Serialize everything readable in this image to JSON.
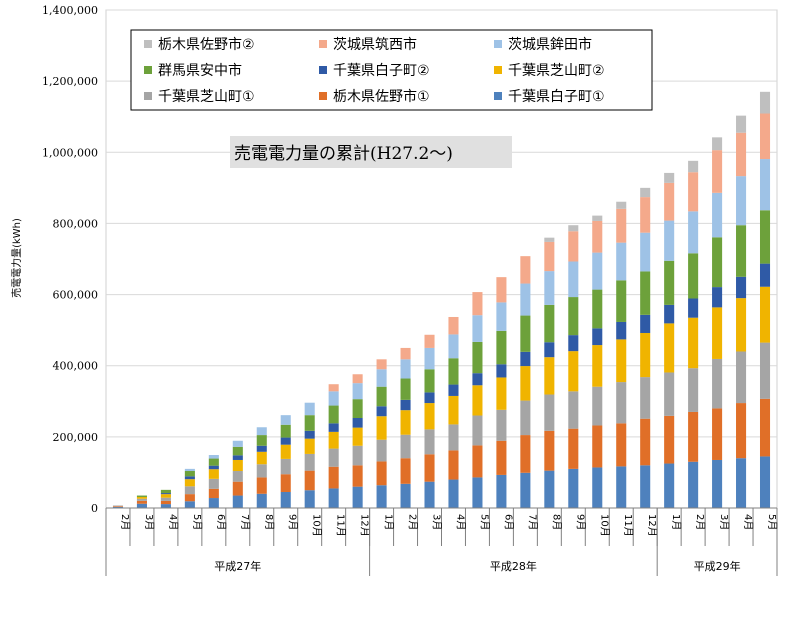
{
  "chart_data": {
    "type": "bar",
    "stacked": true,
    "title": "売電電力量の累計(H27.2～)",
    "ylabel": "売電電力量(kWh)",
    "ylim": [
      0,
      1400000
    ],
    "yticks": [
      0,
      200000,
      400000,
      600000,
      800000,
      1000000,
      1200000,
      1400000
    ],
    "ytick_labels": [
      "0",
      "200,000",
      "400,000",
      "600,000",
      "800,000",
      "1,000,000",
      "1,200,000",
      "1,400,000"
    ],
    "grid": true,
    "legend_position": "top-left",
    "categories": [
      "2月",
      "3月",
      "4月",
      "5月",
      "6月",
      "7月",
      "8月",
      "9月",
      "10月",
      "11月",
      "12月",
      "1月",
      "2月",
      "3月",
      "4月",
      "5月",
      "6月",
      "7月",
      "8月",
      "9月",
      "10月",
      "11月",
      "12月",
      "1月",
      "2月",
      "3月",
      "4月",
      "5月"
    ],
    "year_groups": [
      {
        "label": "平成27年",
        "count": 11
      },
      {
        "label": "平成28年",
        "count": 12
      },
      {
        "label": "平成29年",
        "count": 5
      }
    ],
    "legend_order": [
      "栃木県佐野市②",
      "茨城県筑西市",
      "茨城県鉾田市",
      "群馬県安中市",
      "千葉県白子町②",
      "千葉県芝山町②",
      "千葉県芝山町①",
      "栃木県佐野市①",
      "千葉県白子町①"
    ],
    "series": [
      {
        "name": "千葉県白子町①",
        "color": "#4e81bd",
        "values": [
          3000,
          12000,
          11000,
          19000,
          28000,
          35000,
          40000,
          45000,
          50000,
          55000,
          60000,
          64000,
          68000,
          74000,
          80000,
          86000,
          93000,
          99000,
          105000,
          110000,
          114000,
          117000,
          120000,
          125000,
          130000,
          135000,
          140000,
          145000
        ]
      },
      {
        "name": "栃木県佐野市①",
        "color": "#e06f28",
        "values": [
          2000,
          8000,
          9000,
          20000,
          26000,
          39000,
          46000,
          50000,
          55000,
          61000,
          60000,
          67000,
          72000,
          77000,
          82000,
          90000,
          96000,
          106000,
          112000,
          113000,
          118000,
          121000,
          131000,
          134000,
          140000,
          145000,
          155000,
          162000
        ]
      },
      {
        "name": "千葉県芝山町①",
        "color": "#a5a5a5",
        "values": [
          2000,
          6000,
          9000,
          22000,
          28000,
          30000,
          37000,
          43000,
          47000,
          51000,
          55000,
          61000,
          66000,
          70000,
          73000,
          84000,
          87000,
          97000,
          102000,
          105000,
          109000,
          116000,
          117000,
          122000,
          123000,
          139000,
          145000,
          158000
        ]
      },
      {
        "name": "千葉県芝山町②",
        "color": "#f0b400",
        "values": [
          0,
          5000,
          10000,
          20000,
          27000,
          31000,
          35000,
          40000,
          43000,
          47000,
          51000,
          66000,
          69000,
          74000,
          80000,
          85000,
          91000,
          97000,
          105000,
          113000,
          117000,
          120000,
          124000,
          138000,
          142000,
          145000,
          150000,
          157000
        ]
      },
      {
        "name": "千葉県白子町②",
        "color": "#2f5aa6",
        "values": [
          0,
          0,
          3000,
          8000,
          10000,
          13000,
          17000,
          20000,
          22000,
          24000,
          27000,
          28000,
          29000,
          30000,
          32000,
          34000,
          37000,
          40000,
          42000,
          45000,
          47000,
          49000,
          51000,
          52000,
          54000,
          57000,
          60000,
          65000
        ]
      },
      {
        "name": "群馬県安中市",
        "color": "#6da13b",
        "values": [
          0,
          4000,
          9000,
          15000,
          20000,
          24000,
          30000,
          36000,
          44000,
          50000,
          53000,
          55000,
          60000,
          65000,
          74000,
          88000,
          94000,
          102000,
          105000,
          107000,
          109000,
          117000,
          122000,
          124000,
          127000,
          140000,
          145000,
          150000
        ]
      },
      {
        "name": "茨城県鉾田市",
        "color": "#9ec2e6",
        "values": [
          0,
          0,
          0,
          6000,
          10000,
          17000,
          22000,
          27000,
          35000,
          40000,
          45000,
          49000,
          54000,
          60000,
          67000,
          75000,
          80000,
          90000,
          95000,
          100000,
          104000,
          106000,
          109000,
          113000,
          118000,
          125000,
          138000,
          144000
        ]
      },
      {
        "name": "茨城県筑西市",
        "color": "#f4a98b",
        "values": [
          0,
          0,
          0,
          0,
          0,
          0,
          0,
          0,
          0,
          20000,
          25000,
          28000,
          32000,
          37000,
          49000,
          65000,
          71000,
          77000,
          82000,
          85000,
          89000,
          95000,
          100000,
          106000,
          110000,
          120000,
          122000,
          128000
        ]
      },
      {
        "name": "栃木県佐野市②",
        "color": "#bfbfbf",
        "values": [
          0,
          0,
          0,
          0,
          0,
          0,
          0,
          0,
          0,
          0,
          0,
          0,
          0,
          0,
          0,
          0,
          0,
          0,
          12000,
          17000,
          15000,
          20000,
          26000,
          28000,
          32000,
          36000,
          48000,
          61000
        ]
      }
    ]
  }
}
